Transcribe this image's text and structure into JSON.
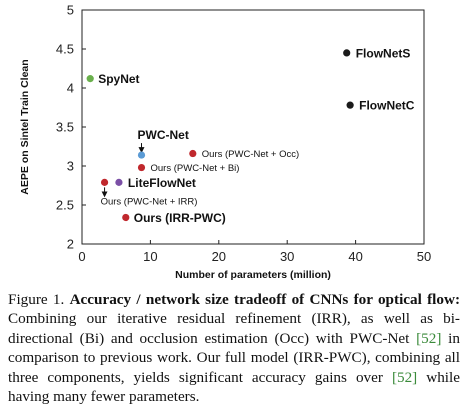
{
  "chart_data": {
    "type": "scatter",
    "xlabel": "Number of parameters (million)",
    "ylabel": "AEPE on Sintel Train Clean",
    "xlim": [
      0,
      50
    ],
    "ylim": [
      2,
      5
    ],
    "xticks": [
      "0",
      "10",
      "20",
      "30",
      "40",
      "50"
    ],
    "yticks": [
      "2",
      "2.5",
      "3",
      "3.5",
      "4",
      "4.5",
      "5"
    ],
    "grid": false,
    "points": [
      {
        "label": "FlowNetS",
        "x": 38.7,
        "y": 4.45,
        "color": "#1a1a1a",
        "style": "bold"
      },
      {
        "label": "FlowNetC",
        "x": 39.2,
        "y": 3.78,
        "color": "#1a1a1a",
        "style": "bold"
      },
      {
        "label": "SpyNet",
        "x": 1.2,
        "y": 4.12,
        "color": "#6ab04c",
        "style": "bold"
      },
      {
        "label": "PWC-Net",
        "x": 8.7,
        "y": 3.14,
        "color": "#5b9bd5",
        "style": "bold"
      },
      {
        "label": "Ours (PWC-Net + Occ)",
        "x": 16.2,
        "y": 3.16,
        "color": "#c0282d",
        "style": "small"
      },
      {
        "label": "Ours (PWC-Net + Bi)",
        "x": 8.7,
        "y": 2.98,
        "color": "#c0282d",
        "style": "small"
      },
      {
        "label": "LiteFlowNet",
        "x": 5.4,
        "y": 2.79,
        "color": "#7b4fa6",
        "style": "bold"
      },
      {
        "label": "Ours (PWC-Net + IRR)",
        "x": 3.3,
        "y": 2.79,
        "color": "#c0282d",
        "style": "small"
      },
      {
        "label": "Ours (IRR-PWC)",
        "x": 6.4,
        "y": 2.34,
        "color": "#c0282d",
        "style": "bold"
      }
    ]
  },
  "caption": {
    "figure_label": "Figure 1.",
    "title": "Accuracy / network size tradeoff of CNNs for optical flow:",
    "text_1": "Combining our iterative residual refinement (IRR), as well as bi-directional (Bi) and occlusion estimation (Occ) with PWC-Net",
    "cite_1": "[52]",
    "text_2": "in comparison to previous work. Our full model (IRR-PWC), combining all three components, yields significant accuracy gains over",
    "cite_2": "[52]",
    "text_3": "while having many fewer parameters."
  }
}
